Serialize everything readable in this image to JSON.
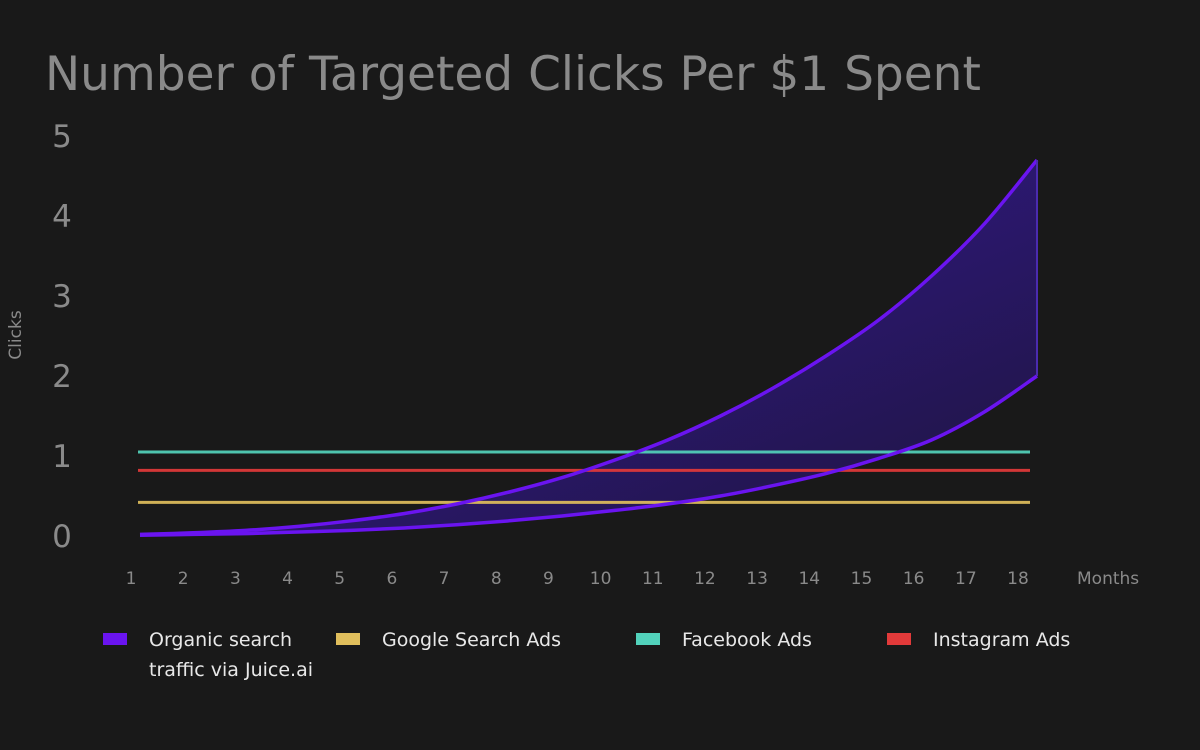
{
  "chart_data": {
    "type": "line",
    "title": "Number of Targeted Clicks Per $1 Spent",
    "xlabel": "Months",
    "ylabel": "Clicks",
    "x": [
      1,
      2,
      3,
      4,
      5,
      6,
      7,
      8,
      9,
      10,
      11,
      12,
      13,
      14,
      15,
      16,
      17,
      18
    ],
    "xlim": [
      1,
      18
    ],
    "ylim": [
      0,
      5
    ],
    "y_ticks": [
      "0",
      "1",
      "2",
      "3",
      "4",
      "5"
    ],
    "x_ticks": [
      "1",
      "2",
      "3",
      "4",
      "5",
      "6",
      "7",
      "8",
      "9",
      "10",
      "11",
      "12",
      "13",
      "14",
      "15",
      "16",
      "17",
      "18"
    ],
    "grid": false,
    "legend_position": "bottom",
    "series": [
      {
        "name": "Organic search traffic via Juice.ai",
        "legend_lines": [
          "Organic search",
          "traffic via Juice.ai"
        ],
        "color": "#6a14f0",
        "kind": "band",
        "upper": [
          0.02,
          0.04,
          0.07,
          0.12,
          0.19,
          0.28,
          0.4,
          0.55,
          0.73,
          0.95,
          1.2,
          1.5,
          1.85,
          2.25,
          2.7,
          3.25,
          3.9,
          4.7
        ],
        "lower": [
          0.01,
          0.02,
          0.03,
          0.05,
          0.07,
          0.1,
          0.14,
          0.19,
          0.25,
          0.32,
          0.4,
          0.5,
          0.63,
          0.78,
          0.97,
          1.2,
          1.55,
          2.0
        ]
      },
      {
        "name": "Google Search Ads",
        "color": "#e0be5c",
        "kind": "flat",
        "value": 0.42
      },
      {
        "name": "Facebook Ads",
        "color": "#52d2bb",
        "kind": "flat",
        "value": 1.05
      },
      {
        "name": "Instagram Ads",
        "color": "#e23a3a",
        "kind": "flat",
        "value": 0.82
      }
    ]
  }
}
